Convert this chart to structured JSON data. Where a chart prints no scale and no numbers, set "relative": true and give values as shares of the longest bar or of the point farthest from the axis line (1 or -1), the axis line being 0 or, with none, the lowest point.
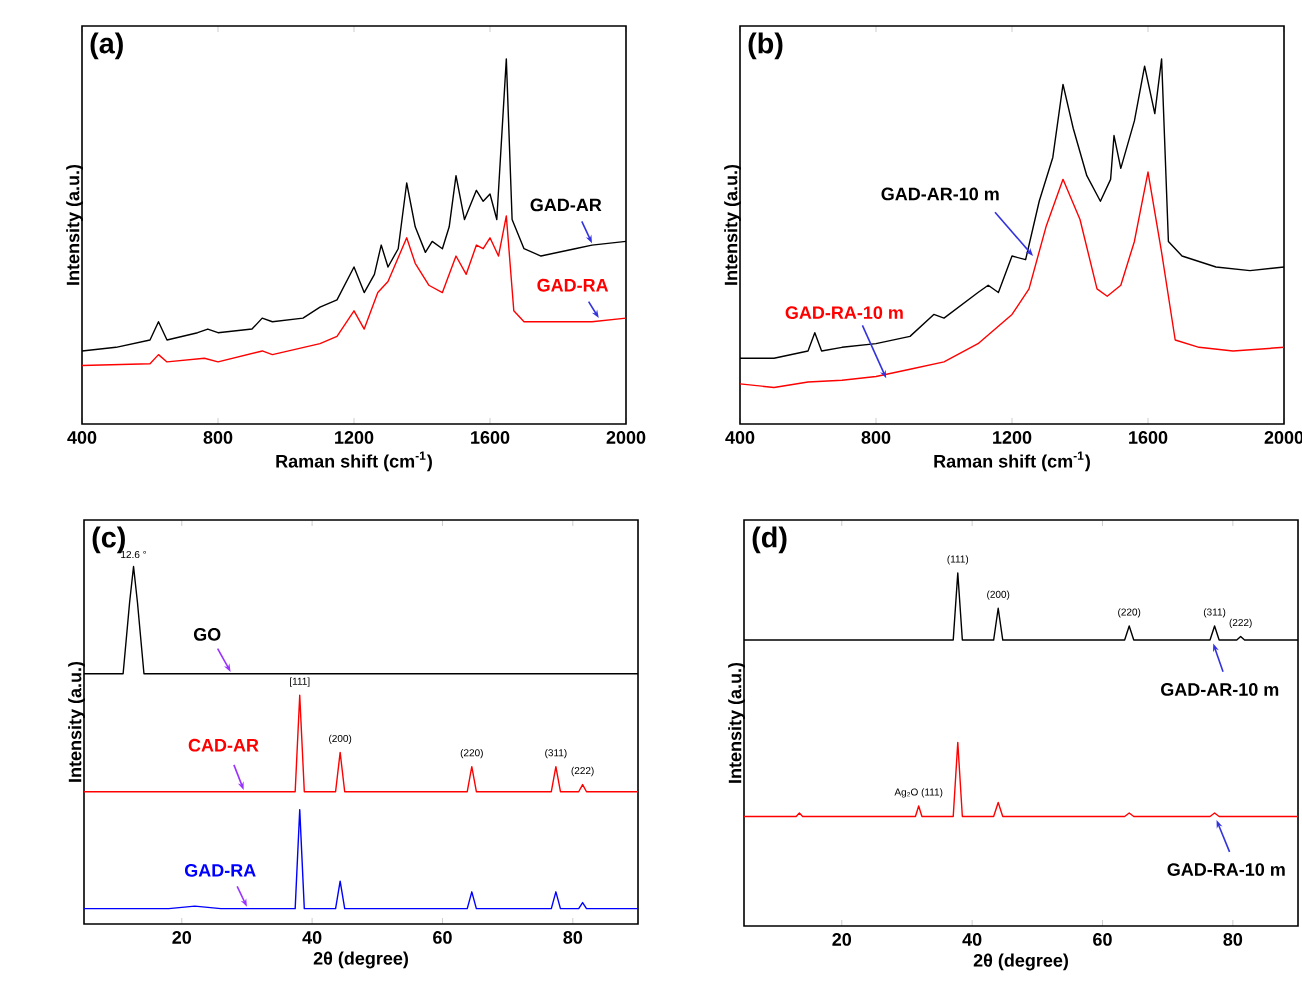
{
  "chart_data": [
    {
      "type": "line",
      "title": "(a)",
      "xlabel": "Raman shift (cm$^{-1}$)",
      "ylabel": "Intensity (a.u.)",
      "relative": true,
      "tick_labels": "x",
      "xlim": [
        400,
        2000
      ],
      "xticks": [
        400,
        800,
        1200,
        1600,
        2000
      ],
      "series": [
        {
          "name": "GAD-AR",
          "color": "#000000",
          "x": [
            400,
            500,
            600,
            625,
            650,
            740,
            770,
            800,
            900,
            930,
            960,
            1050,
            1100,
            1150,
            1200,
            1230,
            1260,
            1280,
            1300,
            1330,
            1355,
            1380,
            1410,
            1430,
            1460,
            1480,
            1500,
            1525,
            1560,
            1580,
            1600,
            1620,
            1648,
            1665,
            1700,
            1750,
            1850,
            1900,
            2000
          ],
          "values": [
            0.2,
            0.21,
            0.23,
            0.28,
            0.23,
            0.25,
            0.26,
            0.25,
            0.26,
            0.29,
            0.28,
            0.29,
            0.32,
            0.34,
            0.43,
            0.36,
            0.41,
            0.49,
            0.43,
            0.48,
            0.66,
            0.54,
            0.47,
            0.5,
            0.48,
            0.54,
            0.68,
            0.56,
            0.64,
            0.61,
            0.63,
            0.56,
            1.0,
            0.56,
            0.48,
            0.46,
            0.48,
            0.49,
            0.5
          ]
        },
        {
          "name": "GAD-RA",
          "color": "#ff0000",
          "x": [
            400,
            600,
            625,
            650,
            760,
            800,
            930,
            960,
            1100,
            1150,
            1200,
            1230,
            1270,
            1300,
            1355,
            1380,
            1420,
            1460,
            1500,
            1530,
            1560,
            1580,
            1600,
            1625,
            1648,
            1670,
            1700,
            1800,
            1900,
            2000
          ],
          "values": [
            0.16,
            0.165,
            0.19,
            0.17,
            0.18,
            0.17,
            0.2,
            0.19,
            0.22,
            0.24,
            0.31,
            0.26,
            0.36,
            0.39,
            0.51,
            0.44,
            0.38,
            0.36,
            0.46,
            0.41,
            0.49,
            0.48,
            0.51,
            0.46,
            0.57,
            0.31,
            0.28,
            0.28,
            0.28,
            0.29
          ]
        }
      ]
    },
    {
      "type": "line",
      "title": "(b)",
      "xlabel": "Raman shift (cm$^{-1}$)",
      "ylabel": "Intensity (a.u.)",
      "relative": true,
      "tick_labels": "x",
      "xlim": [
        400,
        2000
      ],
      "xticks": [
        400,
        800,
        1200,
        1600,
        2000
      ],
      "series": [
        {
          "name": "GAD-AR-10 m",
          "color": "#000000",
          "x": [
            400,
            500,
            600,
            620,
            640,
            700,
            800,
            900,
            970,
            1000,
            1100,
            1130,
            1160,
            1200,
            1240,
            1280,
            1320,
            1350,
            1380,
            1420,
            1460,
            1490,
            1500,
            1520,
            1560,
            1590,
            1620,
            1640,
            1660,
            1700,
            1800,
            1900,
            2000
          ],
          "values": [
            0.18,
            0.18,
            0.2,
            0.25,
            0.2,
            0.21,
            0.22,
            0.24,
            0.3,
            0.29,
            0.36,
            0.38,
            0.36,
            0.46,
            0.45,
            0.61,
            0.73,
            0.93,
            0.81,
            0.68,
            0.61,
            0.67,
            0.79,
            0.7,
            0.83,
            0.98,
            0.85,
            1.0,
            0.5,
            0.46,
            0.43,
            0.42,
            0.43
          ]
        },
        {
          "name": "GAD-RA-10 m",
          "color": "#ff0000",
          "x": [
            400,
            500,
            600,
            700,
            800,
            900,
            1000,
            1100,
            1200,
            1250,
            1300,
            1350,
            1400,
            1450,
            1480,
            1520,
            1560,
            1600,
            1640,
            1680,
            1750,
            1850,
            2000
          ],
          "values": [
            0.11,
            0.1,
            0.115,
            0.12,
            0.13,
            0.15,
            0.17,
            0.22,
            0.3,
            0.37,
            0.54,
            0.67,
            0.56,
            0.37,
            0.35,
            0.38,
            0.5,
            0.69,
            0.47,
            0.23,
            0.21,
            0.2,
            0.21
          ]
        }
      ]
    },
    {
      "type": "line",
      "title": "(c)",
      "xlabel": "2θ (degree)",
      "ylabel": "Intensity (a.u.)",
      "relative": true,
      "tick_labels": "x",
      "xlim": [
        5,
        90
      ],
      "xticks": [
        20,
        40,
        60,
        80
      ],
      "series": [
        {
          "name": "GO",
          "color": "#000000",
          "x": [
            5,
            11,
            12,
            12.6,
            13.2,
            14.2,
            90
          ],
          "values": [
            0.7,
            0.7,
            0.9,
            1.0,
            0.9,
            0.7,
            0.7
          ]
        },
        {
          "name": "CAD-AR",
          "color": "#ff0000",
          "x": [
            5,
            37.4,
            38.1,
            38.8,
            43.6,
            44.3,
            45.0,
            63.8,
            64.5,
            65.2,
            76.7,
            77.4,
            78.1,
            80.9,
            81.5,
            82.1,
            90
          ],
          "values": [
            0.37,
            0.37,
            0.64,
            0.37,
            0.37,
            0.48,
            0.37,
            0.37,
            0.44,
            0.37,
            0.37,
            0.44,
            0.37,
            0.37,
            0.39,
            0.37,
            0.37
          ]
        },
        {
          "name": "GAD-RA",
          "color": "#0000ff",
          "x": [
            5,
            18,
            22,
            26,
            37.4,
            38.1,
            38.8,
            43.6,
            44.3,
            45.0,
            63.8,
            64.5,
            65.2,
            76.7,
            77.4,
            78.1,
            80.9,
            81.5,
            82.1,
            90
          ],
          "values": [
            0.043,
            0.043,
            0.05,
            0.043,
            0.043,
            0.32,
            0.043,
            0.043,
            0.12,
            0.043,
            0.043,
            0.09,
            0.043,
            0.043,
            0.09,
            0.043,
            0.043,
            0.06,
            0.043,
            0.043
          ]
        }
      ],
      "annotations": [
        {
          "text": "12.6 °",
          "x": 12.6,
          "y": 1.0
        },
        {
          "text": "[111]",
          "x": 38.1,
          "y": 0.64
        },
        {
          "text": "(200)",
          "x": 44.3,
          "y": 0.48
        },
        {
          "text": "(220)",
          "x": 64.5,
          "y": 0.44
        },
        {
          "text": "(311)",
          "x": 77.4,
          "y": 0.44
        },
        {
          "text": "(222)",
          "x": 81.5,
          "y": 0.39
        }
      ]
    },
    {
      "type": "line",
      "title": "(d)",
      "xlabel": "2θ (degree)",
      "ylabel": "Intensity (a.u.)",
      "relative": true,
      "tick_labels": "x",
      "xlim": [
        5,
        90
      ],
      "xticks": [
        20,
        40,
        60,
        80
      ],
      "series": [
        {
          "name": "GAD-AR-10 m",
          "color": "#000000",
          "x": [
            5,
            37.1,
            37.8,
            38.5,
            43.3,
            44,
            44.7,
            63.4,
            64.1,
            64.8,
            76.5,
            77.2,
            77.9,
            80.6,
            81.2,
            81.8,
            90
          ],
          "values": [
            0.81,
            0.81,
            1.0,
            0.81,
            0.81,
            0.9,
            0.81,
            0.81,
            0.85,
            0.81,
            0.81,
            0.85,
            0.81,
            0.81,
            0.82,
            0.81,
            0.81
          ]
        },
        {
          "name": "GAD-RA-10 m",
          "color": "#ff0000",
          "x": [
            5,
            13,
            13.5,
            14,
            31.3,
            31.8,
            32.3,
            37.1,
            37.8,
            38.5,
            43.3,
            44,
            44.7,
            63.4,
            64.1,
            64.8,
            76.5,
            77.2,
            77.9,
            90
          ],
          "values": [
            0.31,
            0.31,
            0.32,
            0.31,
            0.31,
            0.34,
            0.31,
            0.31,
            0.52,
            0.31,
            0.31,
            0.35,
            0.31,
            0.31,
            0.32,
            0.31,
            0.31,
            0.32,
            0.31,
            0.31
          ]
        }
      ],
      "annotations": [
        {
          "text": "(111)",
          "x": 37.8,
          "y": 1.0
        },
        {
          "text": "(200)",
          "x": 44,
          "y": 0.9
        },
        {
          "text": "(220)",
          "x": 64.1,
          "y": 0.85
        },
        {
          "text": "(311)",
          "x": 77.2,
          "y": 0.85
        },
        {
          "text": "(222)",
          "x": 81.2,
          "y": 0.82
        },
        {
          "text": "Ag₂O (111)",
          "x": 31.8,
          "y": 0.34
        }
      ]
    }
  ]
}
